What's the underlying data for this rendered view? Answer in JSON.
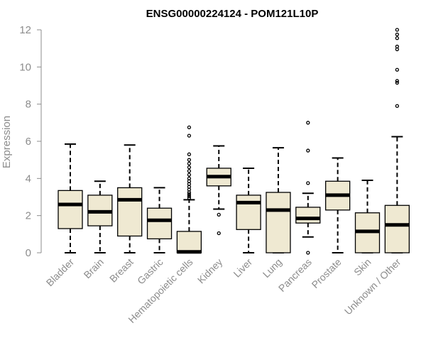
{
  "chart_data": {
    "type": "box",
    "title": "ENSG00000224124 - POM121L10P",
    "ylabel": "Expression",
    "xlabel": "",
    "ylim": [
      0,
      12
    ],
    "yticks": [
      0,
      2,
      4,
      6,
      8,
      10,
      12
    ],
    "grid": false,
    "box_fill": "#efe9d2",
    "categories": [
      "Bladder",
      "Brain",
      "Breast",
      "Gastric",
      "Hematopoietic cells",
      "Kidney",
      "Liver",
      "Lung",
      "Pancreas",
      "Prostate",
      "Skin",
      "Unknown / Other"
    ],
    "boxes": [
      {
        "whislo": 0,
        "q1": 1.3,
        "med": 2.6,
        "q3": 3.35,
        "whishi": 5.85,
        "outliers": []
      },
      {
        "whislo": 0,
        "q1": 1.45,
        "med": 2.2,
        "q3": 3.1,
        "whishi": 3.85,
        "outliers": []
      },
      {
        "whislo": 0,
        "q1": 0.9,
        "med": 2.85,
        "q3": 3.5,
        "whishi": 5.8,
        "outliers": []
      },
      {
        "whislo": 0,
        "q1": 0.75,
        "med": 1.75,
        "q3": 2.4,
        "whishi": 3.5,
        "outliers": []
      },
      {
        "whislo": 0,
        "q1": 0,
        "med": 0.05,
        "q3": 1.15,
        "whishi": 2.85,
        "outliers": [
          2.95,
          3.05,
          3.15,
          3.25,
          3.4,
          3.55,
          3.7,
          3.85,
          4.0,
          4.2,
          4.4,
          4.6,
          4.8,
          5.0,
          5.3,
          6.3,
          6.75
        ]
      },
      {
        "whislo": 2.35,
        "q1": 3.6,
        "med": 4.1,
        "q3": 4.55,
        "whishi": 5.75,
        "outliers": [
          1.05,
          2.05
        ]
      },
      {
        "whislo": 0,
        "q1": 1.25,
        "med": 2.7,
        "q3": 3.1,
        "whishi": 4.55,
        "outliers": []
      },
      {
        "whislo": 0,
        "q1": 0,
        "med": 2.3,
        "q3": 3.25,
        "whishi": 5.65,
        "outliers": []
      },
      {
        "whislo": 0.85,
        "q1": 1.6,
        "med": 1.85,
        "q3": 2.45,
        "whishi": 3.2,
        "outliers": [
          0,
          3.75,
          5.5,
          7.0
        ]
      },
      {
        "whislo": 0,
        "q1": 2.3,
        "med": 3.1,
        "q3": 3.85,
        "whishi": 5.1,
        "outliers": []
      },
      {
        "whislo": 0,
        "q1": 0,
        "med": 1.15,
        "q3": 2.15,
        "whishi": 3.9,
        "outliers": []
      },
      {
        "whislo": 0,
        "q1": 0,
        "med": 1.5,
        "q3": 2.55,
        "whishi": 6.25,
        "outliers": [
          7.9,
          9.15,
          9.25,
          9.85,
          10.95,
          11.1,
          11.55,
          11.75,
          12.0
        ]
      }
    ]
  }
}
